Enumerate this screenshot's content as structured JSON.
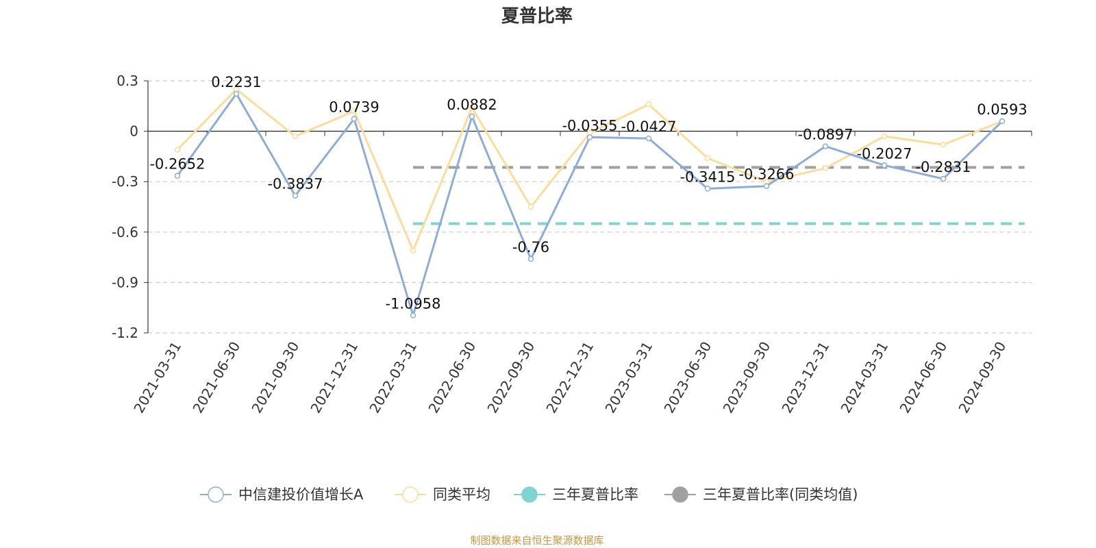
{
  "chart_data": {
    "type": "line",
    "title": "夏普比率",
    "x": [
      "2021-03-31",
      "2021-06-30",
      "2021-09-30",
      "2021-12-31",
      "2022-03-31",
      "2022-06-30",
      "2022-09-30",
      "2022-12-31",
      "2023-03-31",
      "2023-06-30",
      "2023-09-30",
      "2023-12-31",
      "2024-03-31",
      "2024-06-30",
      "2024-09-30"
    ],
    "yticks": [
      "0.3",
      "0",
      "-0.3",
      "-0.6",
      "-0.9",
      "-1.2"
    ],
    "ylim": [
      -1.2,
      0.3
    ],
    "grid": true,
    "legend_position": "bottom",
    "series": [
      {
        "name": "中信建投价值增长A",
        "color": "#8eacd8",
        "values": [
          -0.2652,
          0.2231,
          -0.3837,
          0.0739,
          -1.0958,
          0.0882,
          -0.76,
          -0.0355,
          -0.0427,
          -0.3415,
          -0.3266,
          -0.0897,
          -0.2027,
          -0.2831,
          0.0593
        ],
        "labels": [
          "-0.2652",
          "0.2231",
          "-0.3837",
          "0.0739",
          "-1.0958",
          "0.0882",
          "-0.76",
          "-0.0355",
          "-0.0427",
          "-0.3415",
          "-0.3266",
          "-0.0897",
          "-0.2027",
          "-0.2831",
          "0.0593"
        ]
      },
      {
        "name": "同类平均",
        "color": "#fcdc9a",
        "values": [
          -0.11,
          0.25,
          -0.03,
          0.12,
          -0.71,
          0.14,
          -0.45,
          -0.01,
          0.16,
          -0.16,
          -0.3,
          -0.22,
          -0.03,
          -0.08,
          0.06
        ]
      }
    ],
    "reference_lines": [
      {
        "name": "三年夏普比率",
        "color": "#7fd3d3",
        "value": -0.55,
        "from": "2022-03-31",
        "to": "end"
      },
      {
        "name": "三年夏普比率(同类均值)",
        "color": "#a0a0a0",
        "value": -0.215,
        "from": "2022-03-31",
        "to": "end"
      }
    ],
    "source": "制图数据来自恒生聚源数据库"
  }
}
